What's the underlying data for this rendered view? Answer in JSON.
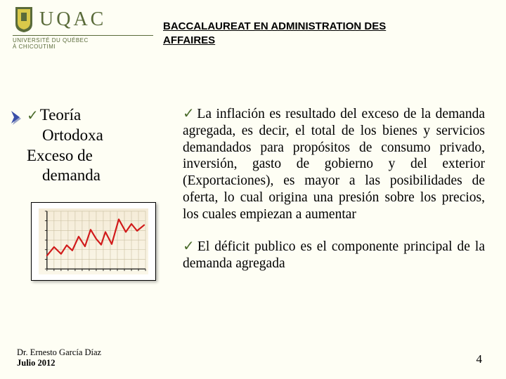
{
  "logo": {
    "acronym": "UQAC",
    "line1": "UNIVERSITÉ DU QUÉBEC",
    "line2": "À CHICOUTIMI",
    "shield_colors": {
      "green": "#5a6b3a",
      "yellow": "#d9c94a"
    }
  },
  "header": {
    "title_l1": "BACCALAUREAT EN ADMINISTRATION DES",
    "title_l2": "AFFAIRES"
  },
  "left": {
    "line1": "Teoría",
    "line2": "Ortodoxa",
    "line3": "Exceso de",
    "line4": "demanda"
  },
  "chart": {
    "type": "line",
    "line_color": "#d11a1a",
    "grid_color": "#c9bfa0",
    "axis_color": "#000000",
    "bg_top": "#f5ecd8",
    "bg_bottom": "#faf6e8",
    "x_range": [
      0,
      14
    ],
    "y_range": [
      0,
      10
    ],
    "x_ticks": 15,
    "y_ticks": 7,
    "points": [
      [
        0,
        2.3
      ],
      [
        1,
        3.8
      ],
      [
        2,
        2.6
      ],
      [
        2.8,
        4.1
      ],
      [
        3.6,
        3.2
      ],
      [
        4.5,
        5.6
      ],
      [
        5.4,
        3.9
      ],
      [
        6.2,
        6.8
      ],
      [
        7,
        5.2
      ],
      [
        7.7,
        4.2
      ],
      [
        8.3,
        6.4
      ],
      [
        9.2,
        4.3
      ],
      [
        10.2,
        8.6
      ],
      [
        11.2,
        6.4
      ],
      [
        12,
        7.8
      ],
      [
        12.8,
        6.6
      ],
      [
        13.8,
        7.6
      ]
    ]
  },
  "bullet_marker": {
    "fill": "#3a4fa8",
    "shadow": "#9aa4c8"
  },
  "body": {
    "p1": "La inflación es resultado del exceso de la demanda agregada, es decir, el total de los bienes y servicios demandados para propósitos de consumo privado, inversión, gasto de gobierno y del exterior (Exportaciones), es mayor a las posibilidades de oferta, lo cual origina una presión sobre los precios, los cuales empiezan a aumentar",
    "p2": "El déficit publico es el componente principal de la demanda agregada"
  },
  "footer": {
    "author": "Dr. Ernesto García Díaz",
    "date": "Julio 2012",
    "page": "4"
  },
  "colors": {
    "check": "#4a6b2a",
    "bg": "#fefef4"
  }
}
